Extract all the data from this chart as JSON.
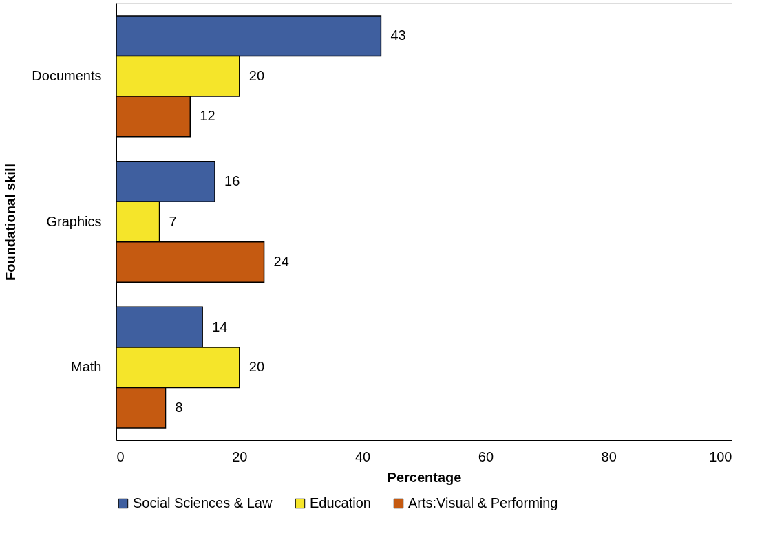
{
  "chart_data": {
    "type": "bar",
    "orientation": "horizontal",
    "xlabel": "Percentage",
    "ylabel": "Foundational skill",
    "categories": [
      "Documents",
      "Graphics",
      "Math"
    ],
    "series": [
      {
        "name": "Social Sciences & Law",
        "color": "#3f5f9f",
        "values": [
          43,
          16,
          14
        ]
      },
      {
        "name": "Education",
        "color": "#f5e52a",
        "values": [
          20,
          7,
          20
        ]
      },
      {
        "name": "Arts:Visual & Performing",
        "color": "#c55a11",
        "values": [
          12,
          24,
          8
        ]
      }
    ],
    "xlim": [
      0,
      100
    ],
    "xticks": [
      0,
      20,
      40,
      60,
      80,
      100
    ],
    "grid": false,
    "legend": "bottom",
    "data_labels": true
  }
}
